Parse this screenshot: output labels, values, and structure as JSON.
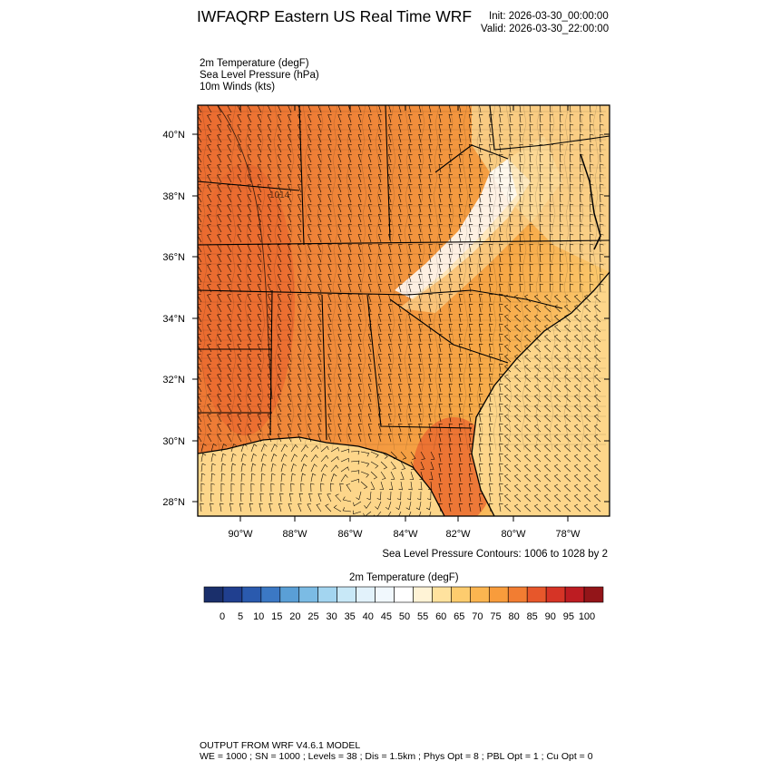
{
  "header": {
    "title": "IWFAQRP Eastern US Real Time WRF",
    "init": "Init: 2026-03-30_00:00:00",
    "valid": "Valid: 2026-03-30_22:00:00"
  },
  "fields": [
    "2m Temperature   (degF)",
    "Sea Level Pressure   (hPa)",
    "10m Winds   (kts)"
  ],
  "map": {
    "lat_labels": [
      "40°N",
      "38°N",
      "36°N",
      "34°N",
      "32°N",
      "30°N",
      "28°N"
    ],
    "lon_labels": [
      "90°W",
      "88°W",
      "86°W",
      "84°W",
      "82°W",
      "80°W",
      "78°W"
    ],
    "pressure_label": "1014",
    "colors": {
      "land_warm": "#f08a3a",
      "land_hot": "#ea6a30",
      "land_mild": "#f8b850",
      "ocean": "#fdd68a",
      "mountain_cold": "#ffffff"
    }
  },
  "contour_note": "Sea Level Pressure Contours: 1006 to 1028 by 2",
  "colorbar": {
    "title": "2m Temperature  (degF)",
    "labels": [
      "0",
      "5",
      "10",
      "15",
      "20",
      "25",
      "30",
      "35",
      "40",
      "45",
      "50",
      "55",
      "60",
      "65",
      "70",
      "75",
      "80",
      "85",
      "90",
      "95",
      "100"
    ],
    "colors": [
      "#1a2f6b",
      "#203f8f",
      "#2a5aae",
      "#3b78c4",
      "#5a9fd6",
      "#7bbbe4",
      "#a3d5f0",
      "#c8e8f7",
      "#e2f2fb",
      "#f1f8fd",
      "#ffffff",
      "#fff3d6",
      "#ffe29e",
      "#fdcc6e",
      "#fbb550",
      "#f89c3c",
      "#f27d32",
      "#e7572b",
      "#d63426",
      "#bd1c22",
      "#931519"
    ]
  },
  "footer": {
    "line1": "OUTPUT FROM WRF V4.6.1 MODEL",
    "line2": "WE = 1000 ; SN = 1000 ; Levels = 38 ; Dis = 1.5km ; Phys Opt = 8 ; PBL Opt = 1 ; Cu Opt = 0"
  }
}
